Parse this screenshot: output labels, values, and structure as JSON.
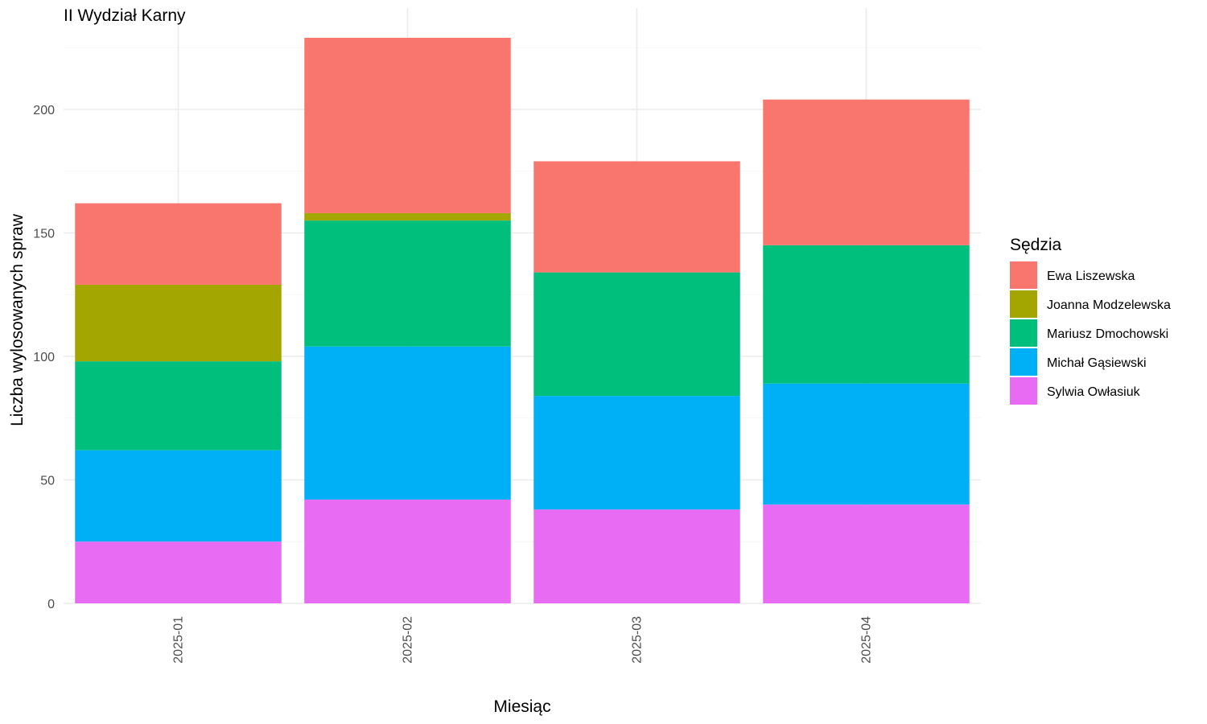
{
  "chart_data": {
    "type": "bar",
    "stacked": true,
    "title": "II Wydział Karny",
    "xlabel": "Miesiąc",
    "ylabel": "Liczba wylosowanych spraw",
    "categories": [
      "2025-01",
      "2025-02",
      "2025-03",
      "2025-04"
    ],
    "ylim": [
      0,
      230
    ],
    "yticks": [
      0,
      50,
      100,
      150,
      200
    ],
    "yticks_labels": [
      "0",
      "50",
      "100",
      "150",
      "200"
    ],
    "grid": true,
    "legend": {
      "title": "Sędzia",
      "position": "right"
    },
    "series": [
      {
        "name": "Sylwia Owłasiuk",
        "color": "#E76BF3",
        "values": [
          25,
          42,
          38,
          40
        ]
      },
      {
        "name": "Michał Gąsiewski",
        "color": "#00B0F6",
        "values": [
          37,
          62,
          46,
          49
        ]
      },
      {
        "name": "Mariusz Dmochowski",
        "color": "#00BF7D",
        "values": [
          36,
          51,
          50,
          56
        ]
      },
      {
        "name": "Joanna Modzelewska",
        "color": "#A3A500",
        "values": [
          31,
          3,
          0,
          0
        ]
      },
      {
        "name": "Ewa Liszewska",
        "color": "#F8766D",
        "values": [
          33,
          71,
          45,
          59
        ]
      }
    ],
    "legend_order": [
      "Ewa Liszewska",
      "Joanna Modzelewska",
      "Mariusz Dmochowski",
      "Michał Gąsiewski",
      "Sylwia Owłasiuk"
    ]
  }
}
